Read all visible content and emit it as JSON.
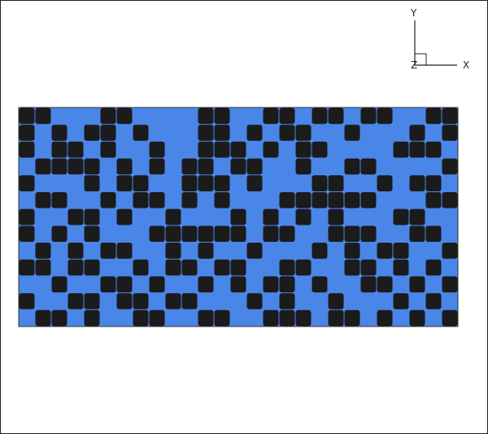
{
  "viewport": {
    "axis_triad": {
      "x_label": "X",
      "y_label": "Y",
      "z_label": "Z"
    },
    "field": {
      "colors": {
        "background": "#4a86e8",
        "blocks": "#1b1b1b",
        "outline": "#333333"
      },
      "grid": {
        "cols": 27,
        "rows": 13
      },
      "blocks": [
        [
          0,
          0
        ],
        [
          1,
          0
        ],
        [
          5,
          0
        ],
        [
          6,
          0
        ],
        [
          11,
          0
        ],
        [
          12,
          0
        ],
        [
          15,
          0
        ],
        [
          16,
          0
        ],
        [
          18,
          0
        ],
        [
          19,
          0
        ],
        [
          21,
          0
        ],
        [
          22,
          0
        ],
        [
          25,
          0
        ],
        [
          26,
          0
        ],
        [
          0,
          1
        ],
        [
          2,
          1
        ],
        [
          4,
          1
        ],
        [
          5,
          1
        ],
        [
          7,
          1
        ],
        [
          11,
          1
        ],
        [
          12,
          1
        ],
        [
          14,
          1
        ],
        [
          16,
          1
        ],
        [
          17,
          1
        ],
        [
          20,
          1
        ],
        [
          24,
          1
        ],
        [
          26,
          1
        ],
        [
          0,
          2
        ],
        [
          2,
          2
        ],
        [
          3,
          2
        ],
        [
          5,
          2
        ],
        [
          8,
          2
        ],
        [
          11,
          2
        ],
        [
          12,
          2
        ],
        [
          13,
          2
        ],
        [
          15,
          2
        ],
        [
          17,
          2
        ],
        [
          18,
          2
        ],
        [
          23,
          2
        ],
        [
          24,
          2
        ],
        [
          25,
          2
        ],
        [
          1,
          3
        ],
        [
          2,
          3
        ],
        [
          3,
          3
        ],
        [
          4,
          3
        ],
        [
          6,
          3
        ],
        [
          8,
          3
        ],
        [
          10,
          3
        ],
        [
          11,
          3
        ],
        [
          13,
          3
        ],
        [
          14,
          3
        ],
        [
          17,
          3
        ],
        [
          20,
          3
        ],
        [
          21,
          3
        ],
        [
          26,
          3
        ],
        [
          0,
          4
        ],
        [
          4,
          4
        ],
        [
          6,
          4
        ],
        [
          7,
          4
        ],
        [
          10,
          4
        ],
        [
          11,
          4
        ],
        [
          12,
          4
        ],
        [
          14,
          4
        ],
        [
          18,
          4
        ],
        [
          19,
          4
        ],
        [
          22,
          4
        ],
        [
          24,
          4
        ],
        [
          25,
          4
        ],
        [
          1,
          5
        ],
        [
          2,
          5
        ],
        [
          5,
          5
        ],
        [
          7,
          5
        ],
        [
          8,
          5
        ],
        [
          10,
          5
        ],
        [
          12,
          5
        ],
        [
          16,
          5
        ],
        [
          17,
          5
        ],
        [
          18,
          5
        ],
        [
          19,
          5
        ],
        [
          20,
          5
        ],
        [
          21,
          5
        ],
        [
          25,
          5
        ],
        [
          26,
          5
        ],
        [
          0,
          6
        ],
        [
          3,
          6
        ],
        [
          4,
          6
        ],
        [
          6,
          6
        ],
        [
          9,
          6
        ],
        [
          13,
          6
        ],
        [
          15,
          6
        ],
        [
          17,
          6
        ],
        [
          19,
          6
        ],
        [
          23,
          6
        ],
        [
          24,
          6
        ],
        [
          0,
          7
        ],
        [
          2,
          7
        ],
        [
          4,
          7
        ],
        [
          8,
          7
        ],
        [
          9,
          7
        ],
        [
          10,
          7
        ],
        [
          11,
          7
        ],
        [
          12,
          7
        ],
        [
          13,
          7
        ],
        [
          15,
          7
        ],
        [
          16,
          7
        ],
        [
          19,
          7
        ],
        [
          20,
          7
        ],
        [
          21,
          7
        ],
        [
          24,
          7
        ],
        [
          25,
          7
        ],
        [
          1,
          8
        ],
        [
          3,
          8
        ],
        [
          5,
          8
        ],
        [
          6,
          8
        ],
        [
          9,
          8
        ],
        [
          11,
          8
        ],
        [
          14,
          8
        ],
        [
          18,
          8
        ],
        [
          20,
          8
        ],
        [
          22,
          8
        ],
        [
          23,
          8
        ],
        [
          26,
          8
        ],
        [
          0,
          9
        ],
        [
          1,
          9
        ],
        [
          3,
          9
        ],
        [
          4,
          9
        ],
        [
          7,
          9
        ],
        [
          9,
          9
        ],
        [
          10,
          9
        ],
        [
          12,
          9
        ],
        [
          13,
          9
        ],
        [
          16,
          9
        ],
        [
          17,
          9
        ],
        [
          20,
          9
        ],
        [
          21,
          9
        ],
        [
          23,
          9
        ],
        [
          25,
          9
        ],
        [
          2,
          10
        ],
        [
          5,
          10
        ],
        [
          6,
          10
        ],
        [
          8,
          10
        ],
        [
          11,
          10
        ],
        [
          13,
          10
        ],
        [
          15,
          10
        ],
        [
          16,
          10
        ],
        [
          18,
          10
        ],
        [
          21,
          10
        ],
        [
          22,
          10
        ],
        [
          24,
          10
        ],
        [
          26,
          10
        ],
        [
          0,
          11
        ],
        [
          3,
          11
        ],
        [
          4,
          11
        ],
        [
          6,
          11
        ],
        [
          7,
          11
        ],
        [
          9,
          11
        ],
        [
          10,
          11
        ],
        [
          14,
          11
        ],
        [
          16,
          11
        ],
        [
          19,
          11
        ],
        [
          23,
          11
        ],
        [
          25,
          11
        ],
        [
          1,
          12
        ],
        [
          2,
          12
        ],
        [
          4,
          12
        ],
        [
          7,
          12
        ],
        [
          8,
          12
        ],
        [
          11,
          12
        ],
        [
          12,
          12
        ],
        [
          15,
          12
        ],
        [
          16,
          12
        ],
        [
          17,
          12
        ],
        [
          19,
          12
        ],
        [
          20,
          12
        ],
        [
          22,
          12
        ],
        [
          24,
          12
        ],
        [
          26,
          12
        ]
      ]
    }
  }
}
